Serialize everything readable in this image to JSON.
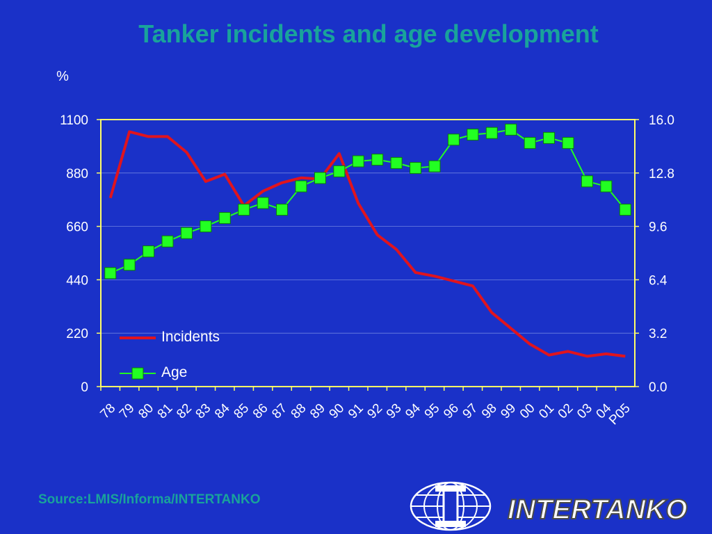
{
  "title": "Tanker incidents and age development",
  "source": "Source:LMIS/Informa/INTERTANKO",
  "logo": {
    "wordmark": "INTERTANKO",
    "icon": "globe-logo-icon"
  },
  "colors": {
    "background": "#1a31c8",
    "title": "#19a39b",
    "axis": "#ffff66",
    "incidents": "#e0141e",
    "age": "#22ff22",
    "label_text": "#ffffff"
  },
  "chart_data": {
    "type": "line",
    "title": "Tanker incidents and age development",
    "ylabel": "%",
    "categories": [
      "78",
      "79",
      "80",
      "81",
      "82",
      "83",
      "84",
      "85",
      "86",
      "87",
      "88",
      "89",
      "90",
      "91",
      "92",
      "93",
      "94",
      "95",
      "96",
      "97",
      "98",
      "99",
      "00",
      "01",
      "02",
      "03",
      "04",
      "P05"
    ],
    "ylim": [
      0,
      1100
    ],
    "y2lim": [
      0,
      16
    ],
    "yticks": [
      "0",
      "220",
      "440",
      "660",
      "880",
      "1100"
    ],
    "y2ticks": [
      "0.0",
      "3.2",
      "6.4",
      "9.6",
      "12.8",
      "16.0"
    ],
    "legend": "inside-bottom-left",
    "series": [
      {
        "name": "Incidents",
        "axis": "left",
        "values": [
          777,
          1050,
          1030,
          1030,
          965,
          845,
          875,
          745,
          805,
          840,
          860,
          855,
          960,
          755,
          625,
          565,
          470,
          455,
          435,
          415,
          305,
          240,
          175,
          130,
          145,
          125,
          135,
          125
        ]
      },
      {
        "name": "Age",
        "axis": "right",
        "values": [
          6.8,
          7.3,
          8.1,
          8.7,
          9.2,
          9.6,
          10.1,
          10.6,
          11.0,
          10.6,
          12.0,
          12.5,
          12.9,
          13.5,
          13.6,
          13.4,
          13.1,
          13.2,
          14.8,
          15.1,
          15.2,
          15.4,
          14.6,
          14.9,
          14.6,
          12.3,
          12.0,
          10.6
        ]
      }
    ]
  }
}
